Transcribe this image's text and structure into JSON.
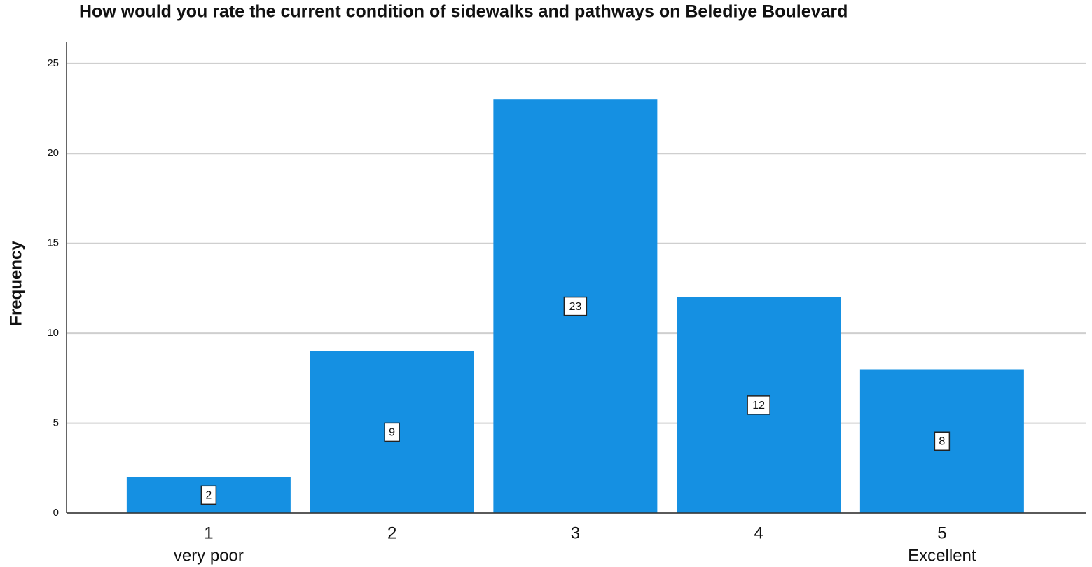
{
  "chart_data": {
    "type": "bar",
    "title": "How would you rate the current condition of sidewalks and pathways on Belediye Boulevard",
    "y_label": "Frequency",
    "categories": [
      "1",
      "2",
      "3",
      "4",
      "5"
    ],
    "category_sublabels": [
      "very poor",
      null,
      null,
      null,
      "Excellent"
    ],
    "values": [
      2,
      9,
      23,
      12,
      8
    ],
    "color": "#1590e2",
    "ylim": [
      0,
      26.2
    ],
    "yticks": [
      0,
      5,
      10,
      15,
      20,
      25
    ],
    "grid": true
  }
}
